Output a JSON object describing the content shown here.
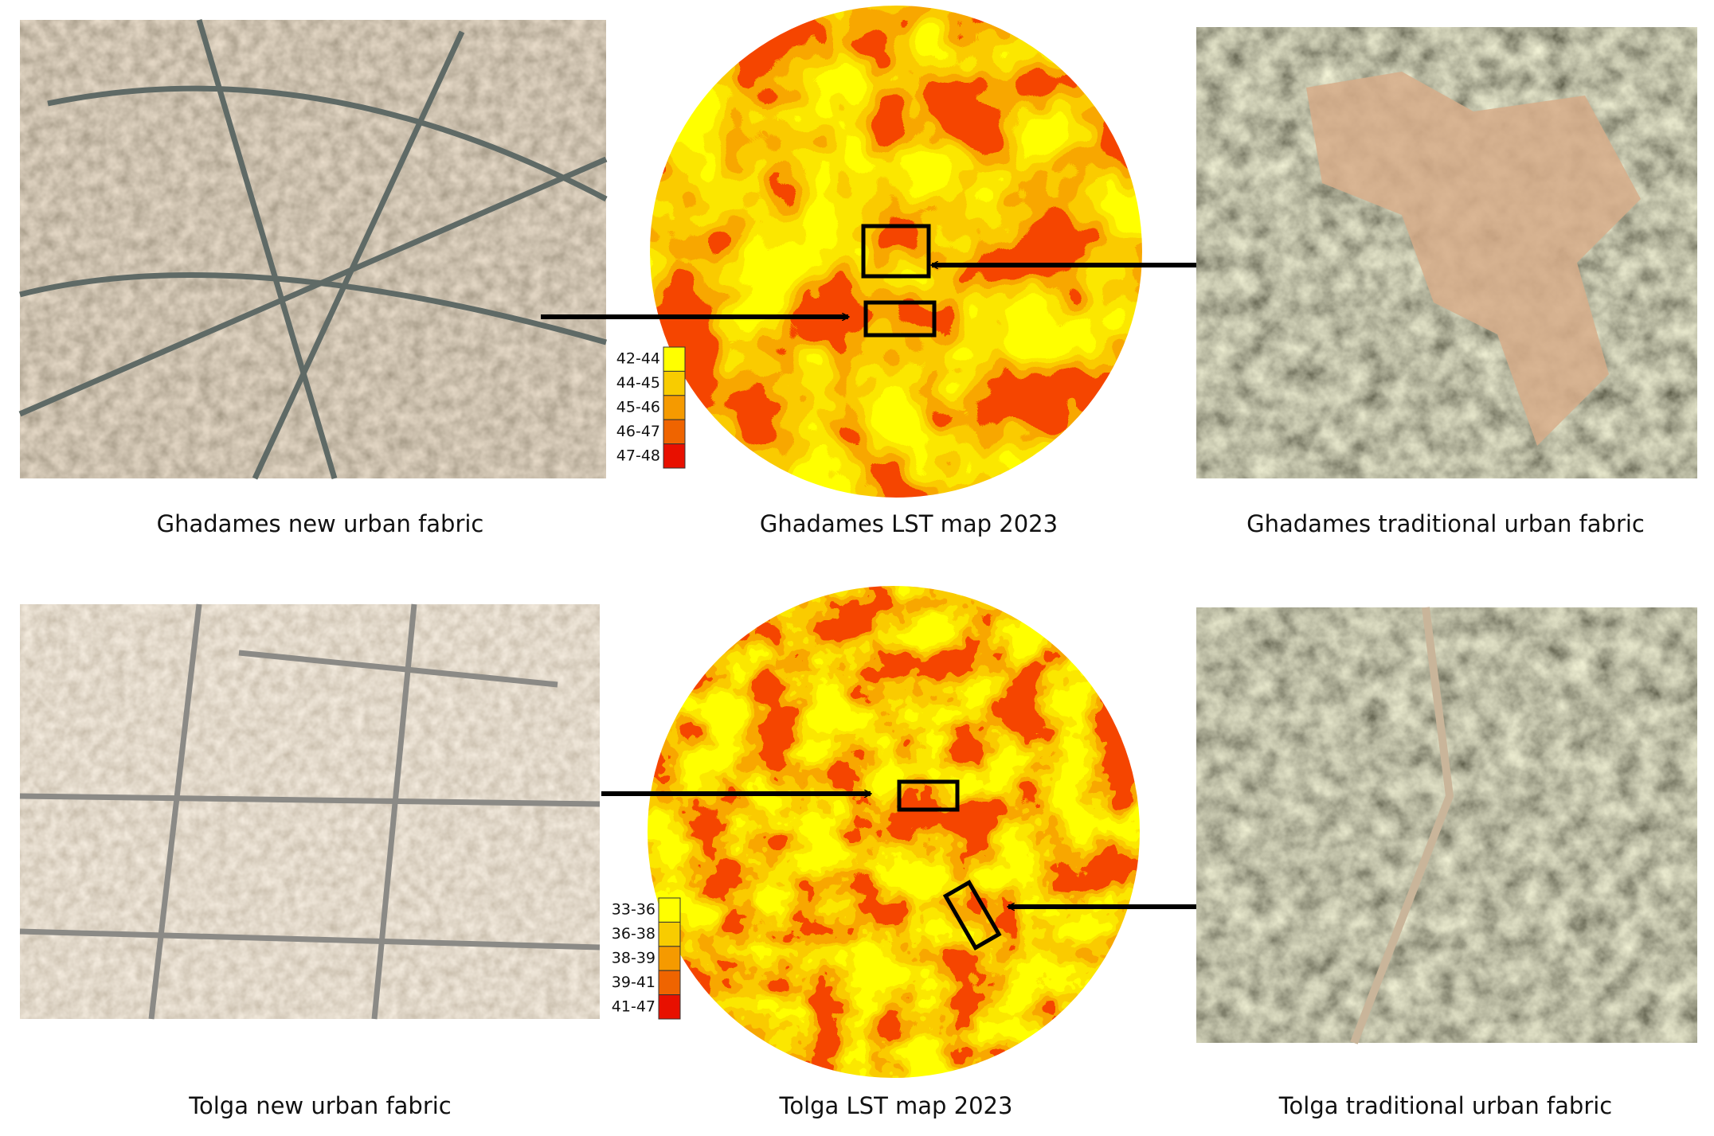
{
  "panels": [
    {
      "new_caption": "Ghadames new urban fabric",
      "map_caption": "Ghadames LST map 2023",
      "traditional_caption": "Ghadames traditional urban fabric",
      "legend": [
        {
          "label": "42-44",
          "color": "#ffff00"
        },
        {
          "label": "44-45",
          "color": "#f8cc00"
        },
        {
          "label": "45-46",
          "color": "#f59a00"
        },
        {
          "label": "46-47",
          "color": "#ef6400"
        },
        {
          "label": "47-48",
          "color": "#e81000"
        }
      ]
    },
    {
      "new_caption": "Tolga new urban fabric",
      "map_caption": "Tolga LST map 2023",
      "traditional_caption": "Tolga traditional urban fabric",
      "legend": [
        {
          "label": "33-36",
          "color": "#ffff00"
        },
        {
          "label": "36-38",
          "color": "#f8cc00"
        },
        {
          "label": "38-39",
          "color": "#f59a00"
        },
        {
          "label": "39-41",
          "color": "#ef6400"
        },
        {
          "label": "41-47",
          "color": "#e81000"
        }
      ]
    }
  ]
}
